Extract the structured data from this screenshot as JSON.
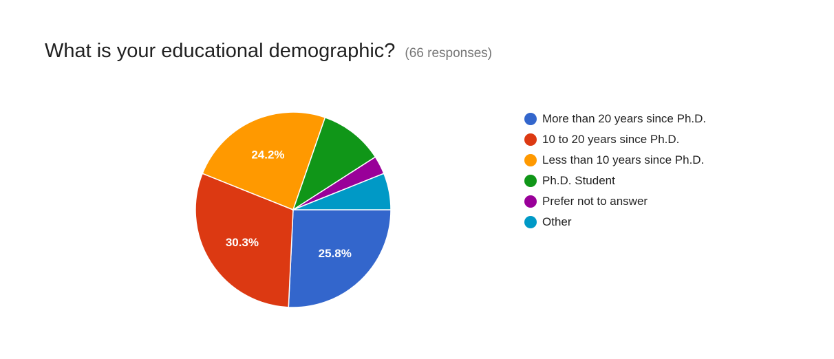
{
  "question": {
    "title": "What is your educational demographic?",
    "responses": "(66 responses)"
  },
  "chart_data": {
    "type": "pie",
    "total_responses": 66,
    "categories": [
      "More than 20 years since Ph.D.",
      "10 to 20 years since Ph.D.",
      "Less than 10 years since Ph.D.",
      "Ph.D. Student",
      "Prefer not to answer",
      "Other"
    ],
    "values": [
      17,
      20,
      16,
      7,
      2,
      4
    ],
    "percentages": [
      25.8,
      30.3,
      24.2,
      10.6,
      3.0,
      6.1
    ],
    "data_labels": [
      "25.8%",
      "30.3%",
      "24.2%",
      "",
      "",
      ""
    ],
    "colors": [
      "#3366cc",
      "#dc3912",
      "#ff9900",
      "#109618",
      "#990099",
      "#0099c6"
    ],
    "legend": "right"
  }
}
